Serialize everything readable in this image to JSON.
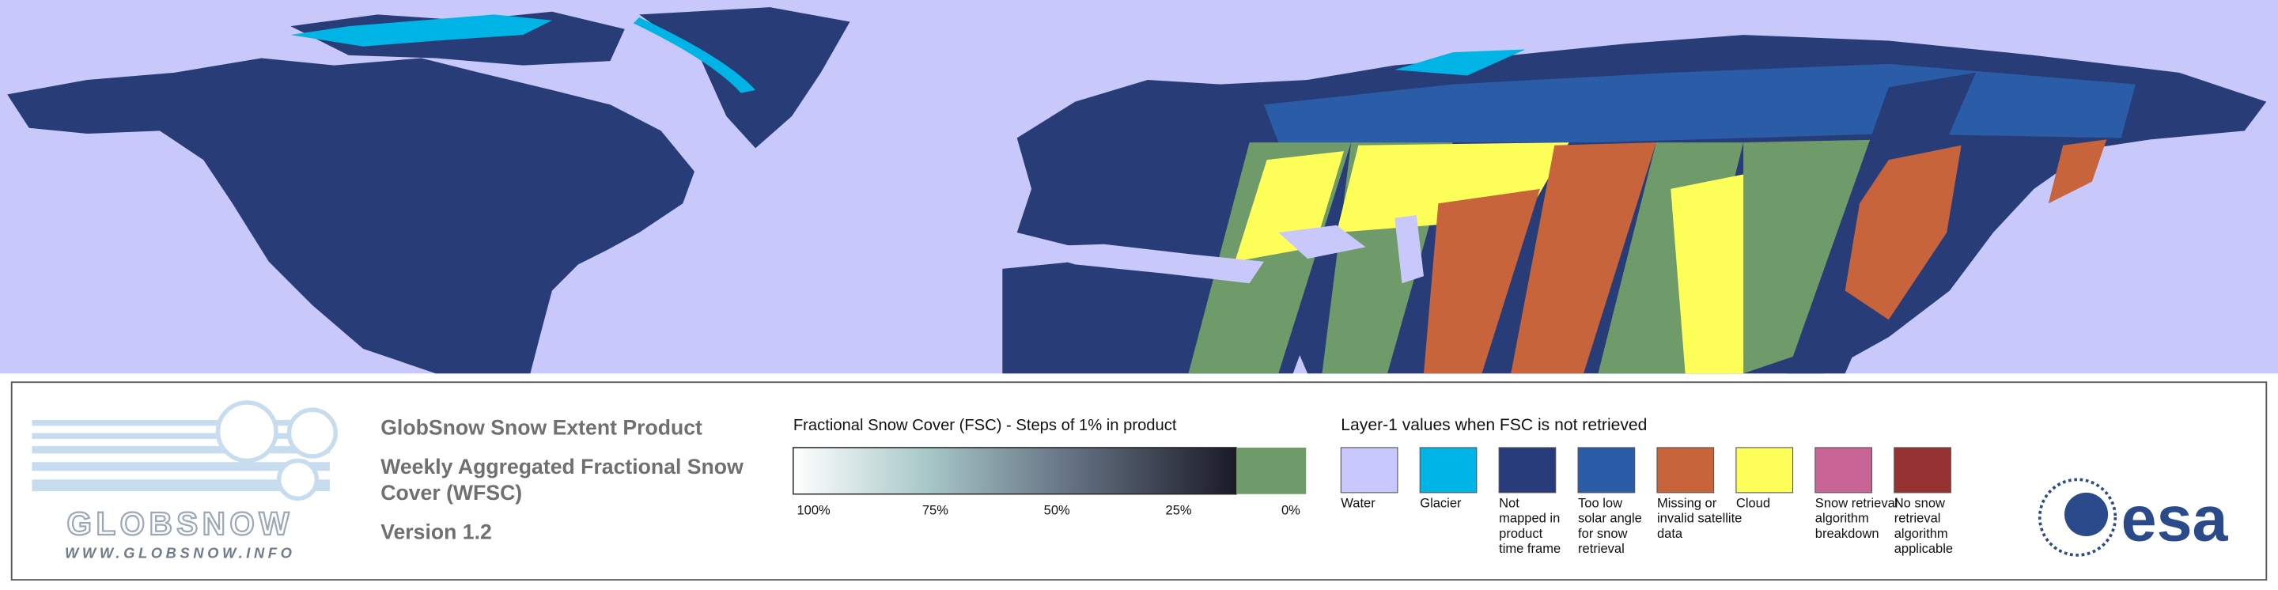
{
  "logo": {
    "name": "GLOBSNOW",
    "url": "WWW.GLOBSNOW.INFO"
  },
  "product": {
    "title": "GlobSnow Snow Extent Product",
    "subtitle_lines": [
      "Weekly Aggregated Fractional Snow",
      "Cover (WFSC)"
    ],
    "version": "Version 1.2"
  },
  "fsc_legend": {
    "title": "Fractional Snow Cover (FSC) - Steps of 1% in product",
    "ticks": [
      "100%",
      "75%",
      "50%",
      "25%",
      "0%"
    ]
  },
  "layer1_legend": {
    "title": "Layer-1 values when FSC is not retrieved",
    "items": [
      {
        "color": "#c8c8ff",
        "label_lines": [
          "Water"
        ]
      },
      {
        "color": "#00b4e6",
        "label_lines": [
          "Glacier"
        ]
      },
      {
        "color": "#283c7c",
        "label_lines": [
          "Not",
          "mapped in",
          "product",
          "time frame"
        ]
      },
      {
        "color": "#2a5ca8",
        "label_lines": [
          "Too low",
          "solar angle",
          "for snow",
          "retrieval"
        ]
      },
      {
        "color": "#c8643c",
        "label_lines": [
          "Missing or",
          "invalid satellite",
          "data"
        ]
      },
      {
        "color": "#ffff5a",
        "label_lines": [
          "Cloud"
        ]
      },
      {
        "color": "#c86496",
        "label_lines": [
          "Snow retrieval",
          "algorithm",
          "breakdown"
        ]
      },
      {
        "color": "#963232",
        "label_lines": [
          "No snow",
          "retrieval",
          "algorithm",
          "applicable"
        ]
      }
    ]
  },
  "agency_logo": "esa"
}
